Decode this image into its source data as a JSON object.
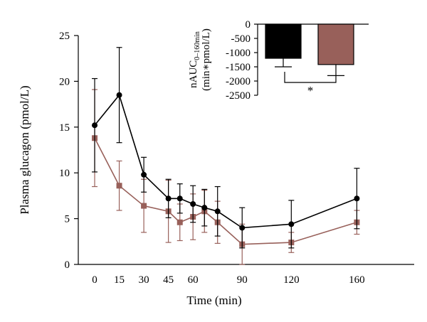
{
  "chart_data": [
    {
      "type": "line",
      "xlabel": "Time (min)",
      "ylabel": "Plasma glucagon (pmol/L)",
      "xlim": [
        -10,
        195
      ],
      "ylim": [
        0,
        25
      ],
      "x_ticks": [
        0,
        15,
        30,
        45,
        60,
        90,
        120,
        160
      ],
      "y_ticks": [
        0,
        5,
        10,
        15,
        20,
        25
      ],
      "grid": false,
      "series": [
        {
          "color": "#000000",
          "marker": "circle",
          "points": [
            {
              "x": 0,
              "y": 15.2,
              "err": 5.1
            },
            {
              "x": 15,
              "y": 18.5,
              "err": 5.2
            },
            {
              "x": 30,
              "y": 9.8,
              "err": 1.9
            },
            {
              "x": 45,
              "y": 7.2,
              "err": 2.1
            },
            {
              "x": 52,
              "y": 7.2,
              "err": 1.6
            },
            {
              "x": 60,
              "y": 6.6,
              "err": 2.0
            },
            {
              "x": 67,
              "y": 6.2,
              "err": 2.0
            },
            {
              "x": 75,
              "y": 5.8,
              "err": 2.7
            },
            {
              "x": 90,
              "y": 4.0,
              "err": 2.2
            },
            {
              "x": 120,
              "y": 4.4,
              "err": 2.6
            },
            {
              "x": 160,
              "y": 7.2,
              "err": 3.3
            }
          ]
        },
        {
          "color": "#98605a",
          "marker": "square",
          "points": [
            {
              "x": 0,
              "y": 13.8,
              "err": 5.3
            },
            {
              "x": 15,
              "y": 8.6,
              "err": 2.7
            },
            {
              "x": 30,
              "y": 6.4,
              "err": 2.9
            },
            {
              "x": 45,
              "y": 5.8,
              "err": 3.4
            },
            {
              "x": 52,
              "y": 4.6,
              "err": 2.0
            },
            {
              "x": 60,
              "y": 5.2,
              "err": 2.5
            },
            {
              "x": 67,
              "y": 5.8,
              "err": 2.3
            },
            {
              "x": 75,
              "y": 4.6,
              "err": 2.3
            },
            {
              "x": 90,
              "y": 2.2,
              "err": 2.2
            },
            {
              "x": 120,
              "y": 2.4,
              "err": 1.1
            },
            {
              "x": 160,
              "y": 4.6,
              "err": 1.3
            }
          ]
        }
      ]
    },
    {
      "type": "bar",
      "ylabel_main": "nAUC",
      "ylabel_sub": "0–160min",
      "ylabel_line2": "(min∗pmol/L)",
      "ylim": [
        -2500,
        0
      ],
      "y_ticks": [
        0,
        -500,
        -1000,
        -1500,
        -2000,
        -2500
      ],
      "categories": [
        "",
        ""
      ],
      "values": [
        -1200,
        -1420
      ],
      "errors": [
        300,
        390
      ],
      "colors": [
        "#000000",
        "#98605a"
      ],
      "significance": "*"
    }
  ]
}
